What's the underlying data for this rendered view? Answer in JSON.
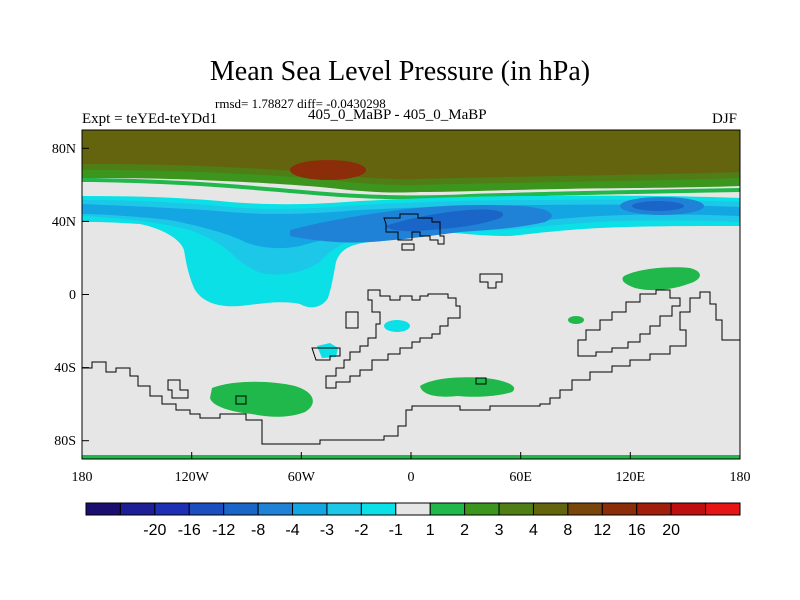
{
  "chart_data": {
    "type": "heatmap",
    "title": "Mean Sea Level Pressure (in hPa)",
    "subtitle": "rmsd= 1.78827 diff= -0.0430298",
    "left_label": "Expt = teYEd-teYDd1",
    "center_label": "405_0_MaBP - 405_0_MaBP",
    "right_label": "DJF",
    "x_ticks": [
      "180",
      "120W",
      "60W",
      "0",
      "60E",
      "120E",
      "180"
    ],
    "y_ticks": [
      "80N",
      "40N",
      "0",
      "40S",
      "80S"
    ],
    "xlim": [
      -180,
      180
    ],
    "ylim": [
      -90,
      90
    ],
    "colorbar": {
      "labels": [
        "-20",
        "-16",
        "-12",
        "-8",
        "-4",
        "-3",
        "-2",
        "-1",
        "1",
        "2",
        "3",
        "4",
        "8",
        "12",
        "16",
        "20"
      ],
      "colors": [
        "#1a0f6e",
        "#1e1e96",
        "#1d2fb4",
        "#1d4ec0",
        "#1966c8",
        "#1f82d7",
        "#13a6e3",
        "#1cc7e8",
        "#0ae0e6",
        "#e6e6e6",
        "#20b84a",
        "#3c961e",
        "#4f7d16",
        "#64640f",
        "#78460a",
        "#8c2d0a",
        "#a01e0a",
        "#be0f0f",
        "#e61414"
      ]
    }
  },
  "colors": {
    "background": "#e6e6e6",
    "coastline": "#000000"
  }
}
